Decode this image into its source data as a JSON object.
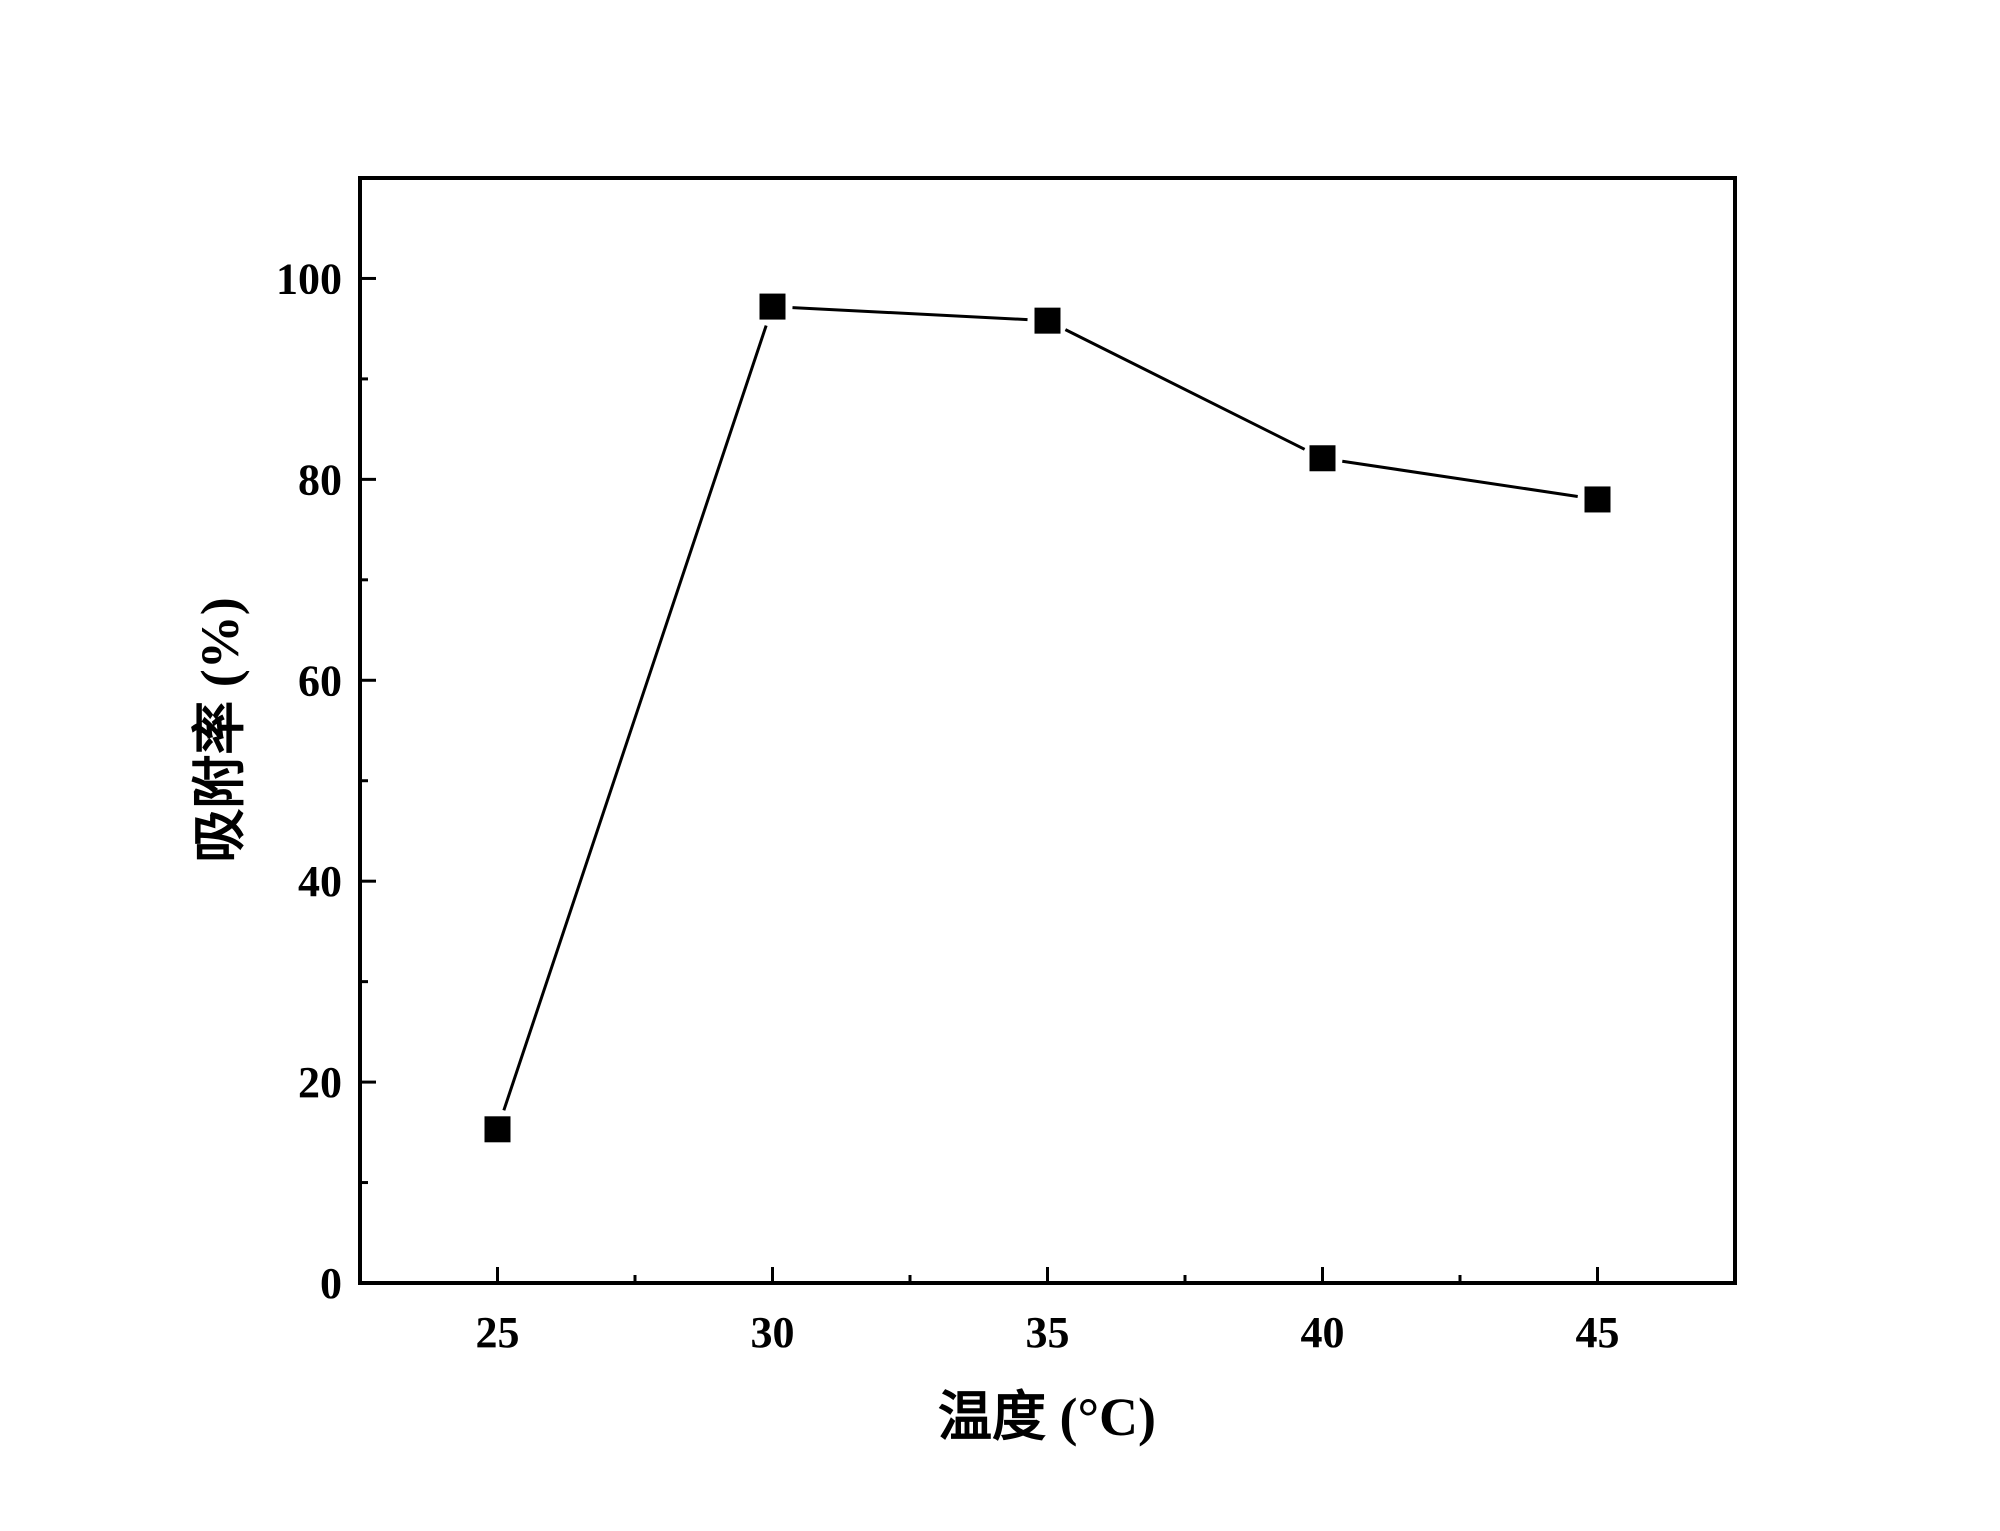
{
  "chart_data": {
    "type": "line",
    "xlabel": "温度 (°C)",
    "ylabel": "吸附率 (%)",
    "xlim": [
      22.5,
      47.5
    ],
    "ylim": [
      0,
      110
    ],
    "x_ticks": [
      25,
      30,
      35,
      40,
      45
    ],
    "y_ticks": [
      0,
      20,
      40,
      60,
      80,
      100
    ],
    "x_minor_ticks": [
      27.5,
      32.5,
      37.5,
      42.5
    ],
    "y_minor_ticks": [
      10,
      30,
      50,
      70,
      90
    ],
    "grid": false,
    "marker": "square",
    "series": [
      {
        "x": [
          25,
          30,
          35,
          40,
          45
        ],
        "y": [
          15.3,
          97.2,
          95.8,
          82.1,
          78.0
        ]
      }
    ],
    "colors": {
      "line": "#000000",
      "marker": "#000000",
      "axes": "#000000"
    }
  }
}
